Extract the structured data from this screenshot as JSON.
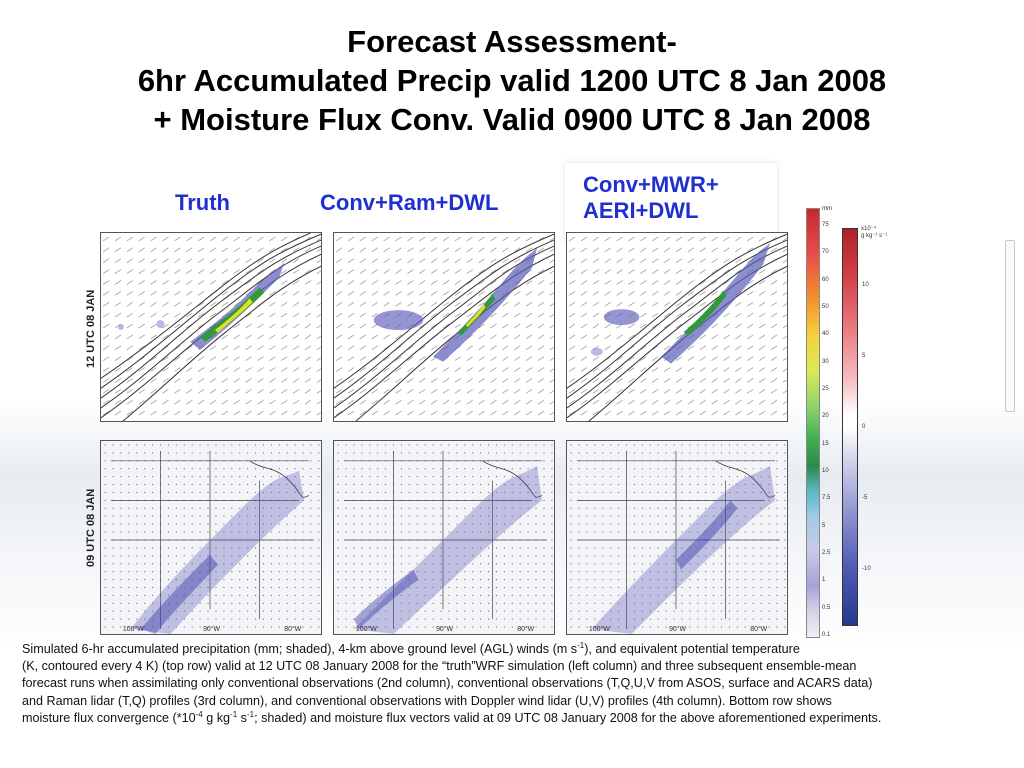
{
  "title": {
    "line1": "Forecast Assessment-",
    "line2": "6hr Accumulated Precip valid 1200 UTC 8 Jan 2008",
    "line3": "+ Moisture Flux Conv. Valid 0900 UTC 8 Jan 2008"
  },
  "columns": {
    "truth": "Truth",
    "ram": "Conv+Ram+DWL",
    "mwr_line1": "Conv+MWR+",
    "mwr_line2": "AERI+DWL"
  },
  "rows": {
    "top": "12 UTC 08 JAN",
    "bottom": "09 UTC 08 JAN"
  },
  "colorbar_precip": {
    "unit": "mm",
    "ticks": [
      "75",
      "70",
      "60",
      "50",
      "40",
      "30",
      "25",
      "20",
      "15",
      "10",
      "7.5",
      "5",
      "2.5",
      "1",
      "0.5",
      "0.1"
    ]
  },
  "colorbar_flux": {
    "unit_line1": "x10⁻⁴",
    "unit_line2": "g kg⁻¹ s⁻¹",
    "ticks": [
      "10",
      "5",
      "0",
      "-5",
      "-10"
    ]
  },
  "longitudes": [
    "100°W",
    "90°W",
    "80°W"
  ],
  "caption": {
    "l1a": "Simulated 6-hr accumulated precipitation (mm; shaded), 4-km above ground level (AGL) winds (m s",
    "l1sup": "-1",
    "l1b": "), and equivalent potential temperature",
    "l2": "(K, contoured every 4 K) (top row) valid at 12 UTC 08 January 2008 for the “truth”WRF simulation (left column) and three subsequent ensemble-mean",
    "l3": "forecast runs when assimilating only conventional observations (2nd column), conventional observations (T,Q,U,V from ASOS, surface and ACARS data)",
    "l4": " and Raman lidar (T,Q) profiles (3rd column), and conventional observations with Doppler wind lidar (U,V) profiles (4th column). Bottom row shows",
    "l5a": "moisture flux convergence (*10",
    "l5sup1": "-4",
    "l5b": " g kg",
    "l5sup2": "-1",
    "l5c": " s",
    "l5sup3": "-1",
    "l5d": "; shaded) and moisture flux vectors valid at 09 UTC 08 January 2008 for the above aforementioned experiments."
  },
  "colors": {
    "label_blue": "#1f2fd0",
    "precip_green": "#2f9a3a",
    "precip_yellow": "#e2dc2a",
    "flux_purple": "#5a5cb8"
  }
}
